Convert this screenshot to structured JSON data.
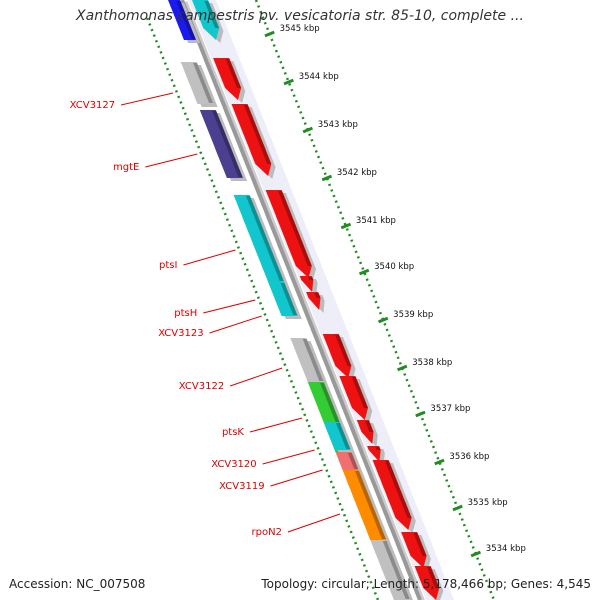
{
  "title": "Xanthomonas campestris pv. vesicatoria str. 85-10, complete ...",
  "accession": "Accession: NC_007508",
  "topology": "Topology: circular; Length: 5,178,466 bp; Genes: 4,545",
  "colors": {
    "backbone": "#999999",
    "ruler": "#228b22",
    "gene_label": "#dd0000",
    "kbp_label": "#111111",
    "cds_red": "#ee1111",
    "grey": "#c0c0c0",
    "purple": "#4b3f8f",
    "cyan": "#11c6cc",
    "green": "#33cc33",
    "salmon": "#f07070",
    "orange": "#ff8c00",
    "blue": "#1a1aee"
  },
  "kbp_labels": [
    "3545 kbp",
    "3544 kbp",
    "3543 kbp",
    "3542 kbp",
    "3541 kbp",
    "3540 kbp",
    "3539 kbp",
    "3538 kbp",
    "3537 kbp",
    "3536 kbp",
    "3535 kbp",
    "3534 kbp"
  ],
  "gene_labels": [
    "XCV3127",
    "mgtE",
    "ptsI",
    "ptsH",
    "XCV3123",
    "XCV3122",
    "ptsK",
    "XCV3120",
    "XCV3119",
    "rpoN2"
  ]
}
